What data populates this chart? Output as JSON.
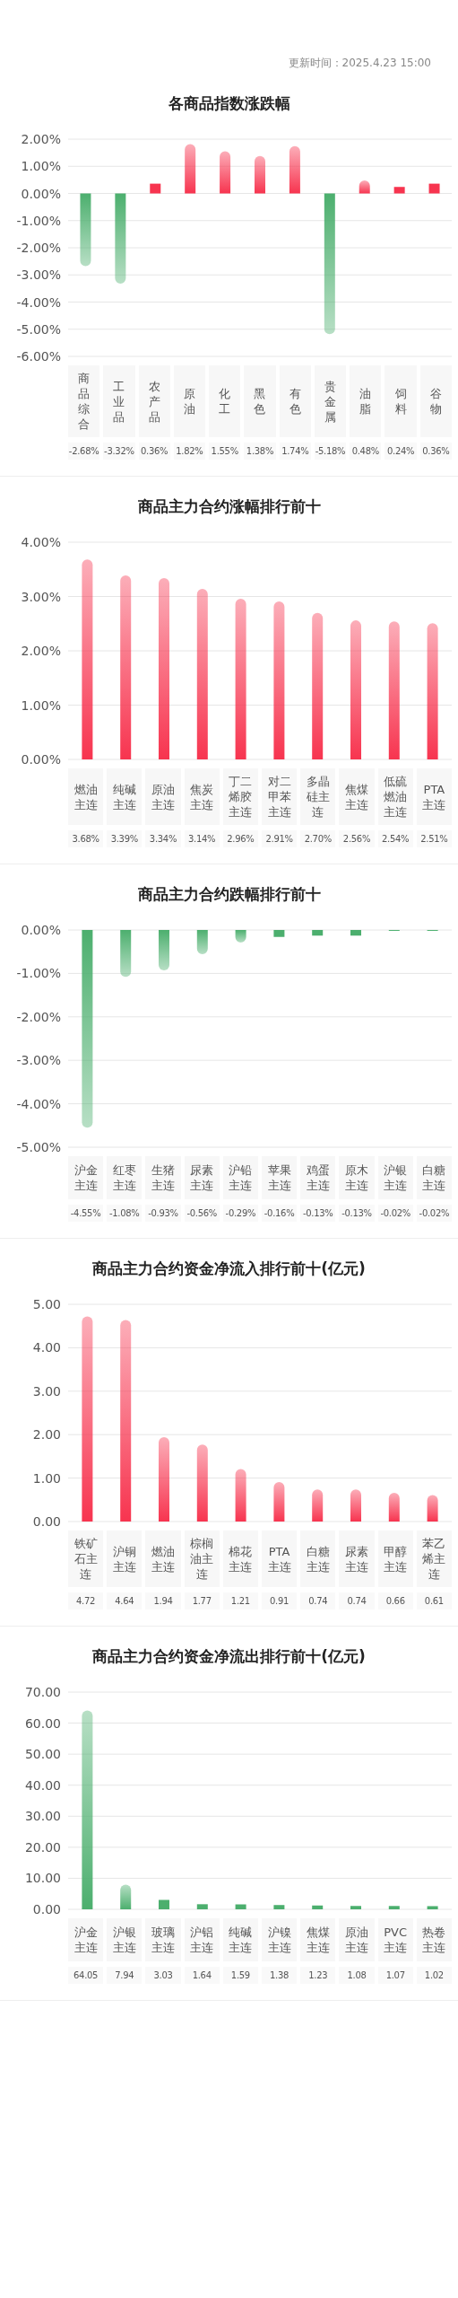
{
  "chart_data": [
    {
      "type": "bar",
      "title": "各商品指数涨跌幅",
      "annotations": [
        "更新时间：2025.4.23 15:00"
      ],
      "categories": [
        "商品综合",
        "工业品",
        "农产品",
        "原油",
        "化工",
        "黑色",
        "有色",
        "贵金属",
        "油脂",
        "饲料",
        "谷物"
      ],
      "values": [
        -2.68,
        -3.32,
        0.36,
        1.82,
        1.55,
        1.38,
        1.74,
        -5.18,
        0.48,
        0.24,
        0.36
      ],
      "colors": [
        "#4caf6e",
        "#4caf6e",
        "#f7344f",
        "#f7344f",
        "#f7344f",
        "#f7344f",
        "#f7344f",
        "#4caf6e",
        "#f7344f",
        "#f7344f",
        "#f7344f"
      ],
      "value_labels": [
        "-2.68%",
        "-3.32%",
        "0.36%",
        "1.82%",
        "1.55%",
        "1.38%",
        "1.74%",
        "-5.18%",
        "0.48%",
        "0.24%",
        "0.36%"
      ],
      "ylim": [
        -6,
        2
      ],
      "yticks": [
        {
          "value": -6,
          "label": "-6.00%"
        },
        {
          "value": -5,
          "label": "-5.00%"
        },
        {
          "value": -4,
          "label": "-4.00%"
        },
        {
          "value": -3,
          "label": "-3.00%"
        },
        {
          "value": -2,
          "label": "-2.00%"
        },
        {
          "value": -1,
          "label": "-1.00%"
        },
        {
          "value": 0,
          "label": "0.00%"
        },
        {
          "value": 1,
          "label": "1.00%"
        },
        {
          "value": 2,
          "label": "2.00%"
        }
      ],
      "grid": "y"
    },
    {
      "type": "bar",
      "title": "商品主力合约涨幅排行前十",
      "categories": [
        "燃油主连",
        "纯碱主连",
        "原油主连",
        "焦炭主连",
        "丁二烯胶主连",
        "对二甲苯主连",
        "多晶硅主连",
        "焦煤主连",
        "低硫燃油主连",
        "PTA主连"
      ],
      "values": [
        3.68,
        3.39,
        3.34,
        3.14,
        2.96,
        2.91,
        2.7,
        2.56,
        2.54,
        2.51
      ],
      "color": "#f7344f",
      "value_labels": [
        "3.68%",
        "3.39%",
        "3.34%",
        "3.14%",
        "2.96%",
        "2.91%",
        "2.70%",
        "2.56%",
        "2.54%",
        "2.51%"
      ],
      "ylim": [
        0,
        4
      ],
      "yticks": [
        {
          "value": 0,
          "label": "0.00%"
        },
        {
          "value": 1,
          "label": "1.00%"
        },
        {
          "value": 2,
          "label": "2.00%"
        },
        {
          "value": 3,
          "label": "3.00%"
        },
        {
          "value": 4,
          "label": "4.00%"
        }
      ],
      "grid": "y"
    },
    {
      "type": "bar",
      "title": "商品主力合约跌幅排行前十",
      "categories": [
        "沪金主连",
        "红枣主连",
        "生猪主连",
        "尿素主连",
        "沪铅主连",
        "苹果主连",
        "鸡蛋主连",
        "原木主连",
        "沪银主连",
        "白糖主连"
      ],
      "values": [
        -4.55,
        -1.08,
        -0.93,
        -0.56,
        -0.29,
        -0.16,
        -0.13,
        -0.13,
        -0.02,
        -0.02
      ],
      "color": "#4caf6e",
      "value_labels": [
        "-4.55%",
        "-1.08%",
        "-0.93%",
        "-0.56%",
        "-0.29%",
        "-0.16%",
        "-0.13%",
        "-0.13%",
        "-0.02%",
        "-0.02%"
      ],
      "ylim": [
        -5,
        0
      ],
      "yticks": [
        {
          "value": -5,
          "label": "-5.00%"
        },
        {
          "value": -4,
          "label": "-4.00%"
        },
        {
          "value": -3,
          "label": "-3.00%"
        },
        {
          "value": -2,
          "label": "-2.00%"
        },
        {
          "value": -1,
          "label": "-1.00%"
        },
        {
          "value": 0,
          "label": "0.00%"
        }
      ],
      "grid": "y"
    },
    {
      "type": "bar",
      "title": "商品主力合约资金净流入排行前十(亿元)",
      "categories": [
        "铁矿石主连",
        "沪铜主连",
        "燃油主连",
        "棕榈油主连",
        "棉花主连",
        "PTA主连",
        "白糖主连",
        "尿素主连",
        "甲醇主连",
        "苯乙烯主连"
      ],
      "values": [
        4.72,
        4.64,
        1.94,
        1.77,
        1.21,
        0.91,
        0.74,
        0.74,
        0.66,
        0.61
      ],
      "color": "#f7344f",
      "value_labels": [
        "4.72",
        "4.64",
        "1.94",
        "1.77",
        "1.21",
        "0.91",
        "0.74",
        "0.74",
        "0.66",
        "0.61"
      ],
      "ylim": [
        0,
        5
      ],
      "yticks": [
        {
          "value": 0,
          "label": "0.00"
        },
        {
          "value": 1,
          "label": "1.00"
        },
        {
          "value": 2,
          "label": "2.00"
        },
        {
          "value": 3,
          "label": "3.00"
        },
        {
          "value": 4,
          "label": "4.00"
        },
        {
          "value": 5,
          "label": "5.00"
        }
      ],
      "grid": "y"
    },
    {
      "type": "bar",
      "title": "商品主力合约资金净流出排行前十(亿元)",
      "categories": [
        "沪金主连",
        "沪银主连",
        "玻璃主连",
        "沪铝主连",
        "纯碱主连",
        "沪镍主连",
        "焦煤主连",
        "原油主连",
        "PVC主连",
        "热卷主连"
      ],
      "values": [
        64.05,
        7.94,
        3.03,
        1.64,
        1.59,
        1.38,
        1.23,
        1.08,
        1.07,
        1.02
      ],
      "color": "#4caf6e",
      "value_labels": [
        "64.05",
        "7.94",
        "3.03",
        "1.64",
        "1.59",
        "1.38",
        "1.23",
        "1.08",
        "1.07",
        "1.02"
      ],
      "ylim": [
        0,
        70
      ],
      "yticks": [
        {
          "value": 0,
          "label": "0.00"
        },
        {
          "value": 10,
          "label": "10.00"
        },
        {
          "value": 20,
          "label": "20.00"
        },
        {
          "value": 30,
          "label": "30.00"
        },
        {
          "value": 40,
          "label": "40.00"
        },
        {
          "value": 50,
          "label": "50.00"
        },
        {
          "value": 60,
          "label": "60.00"
        },
        {
          "value": 70,
          "label": "70.00"
        }
      ],
      "grid": "y"
    }
  ]
}
